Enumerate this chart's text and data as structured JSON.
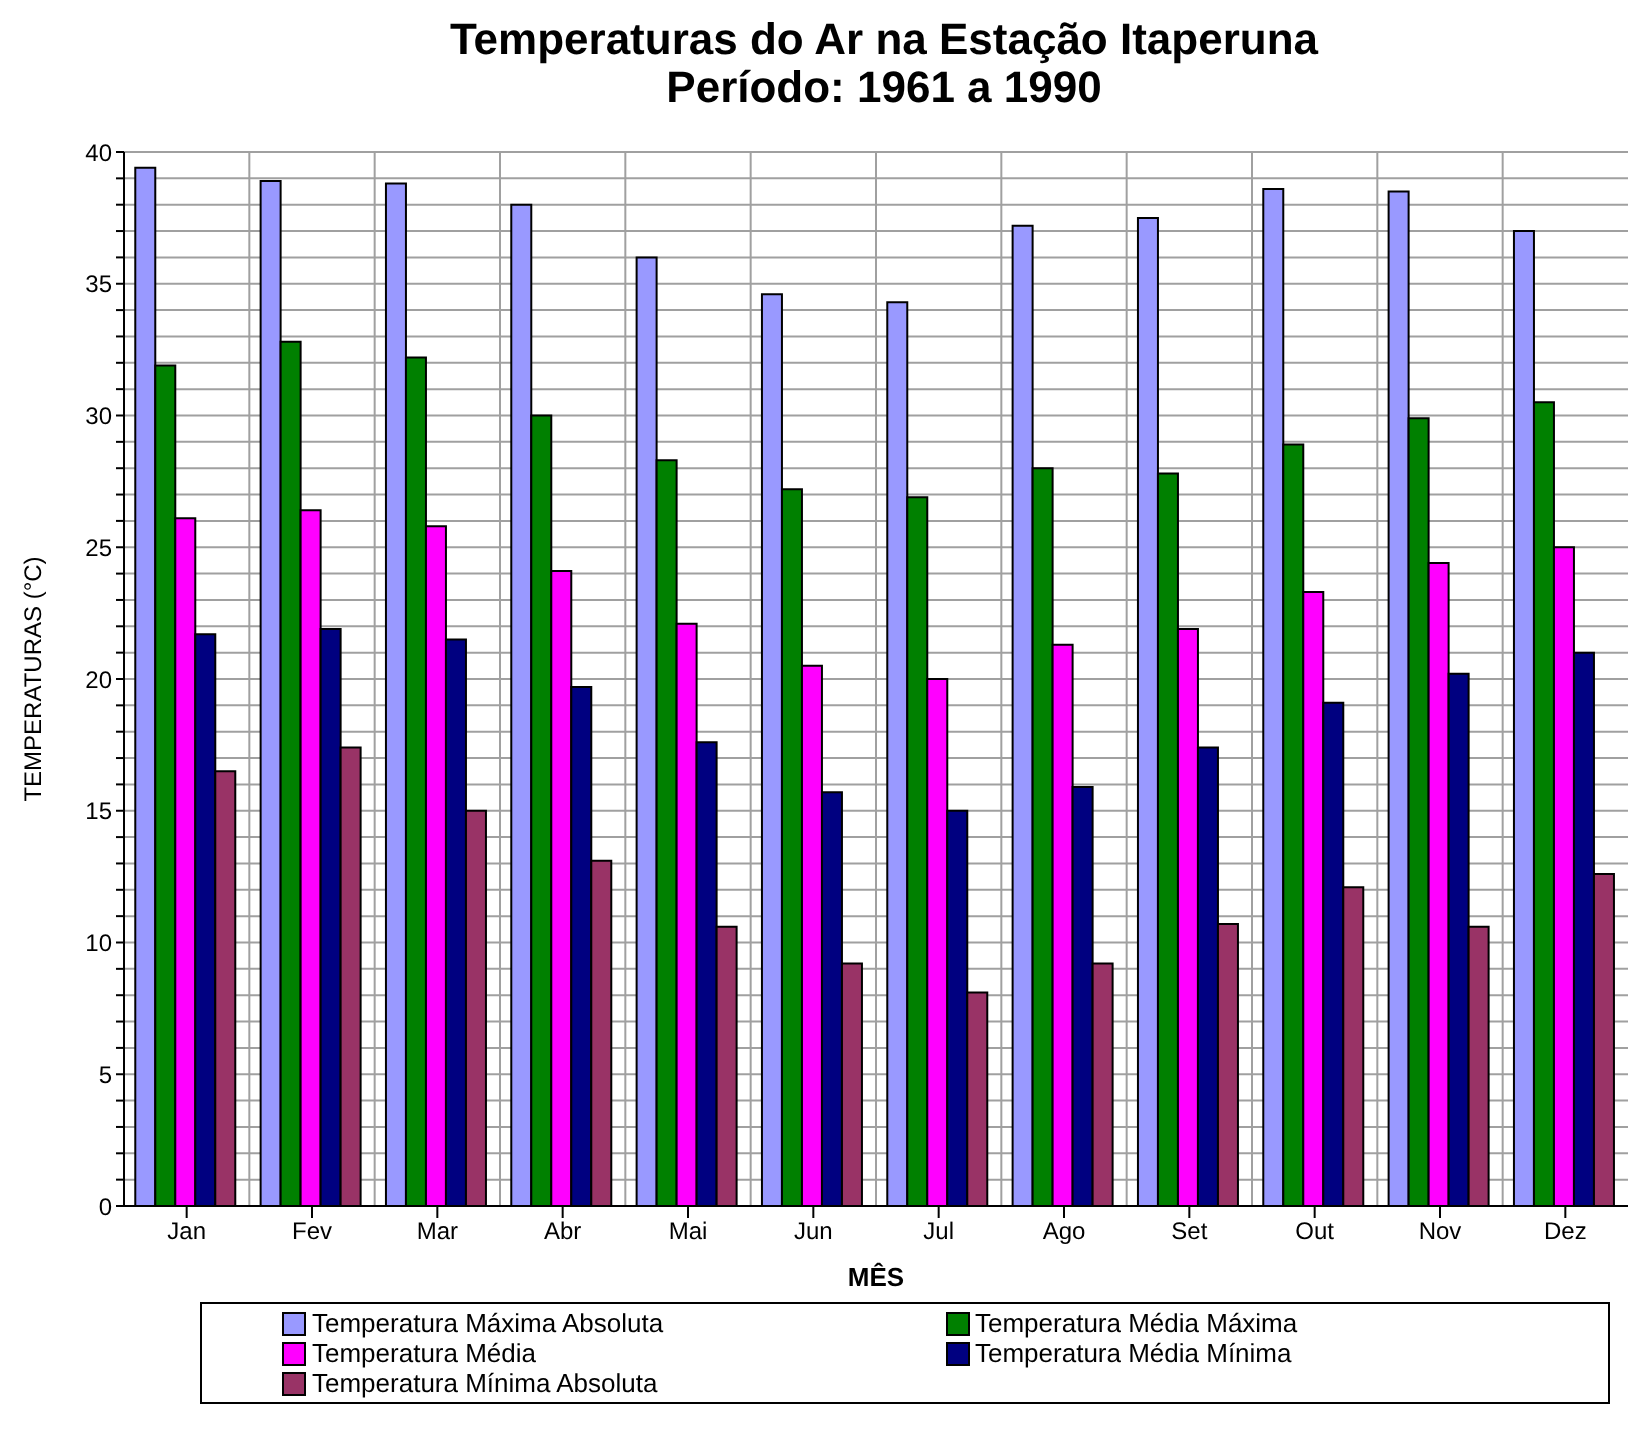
{
  "chart_data": {
    "type": "bar",
    "title": "Temperaturas do Ar na Estação Itaperuna",
    "subtitle": "Período: 1961 a 1990",
    "xlabel": "MÊS",
    "ylabel": "TEMPERATURAS (°C)",
    "categories": [
      "Jan",
      "Fev",
      "Mar",
      "Abr",
      "Mai",
      "Jun",
      "Jul",
      "Ago",
      "Set",
      "Out",
      "Nov",
      "Dez"
    ],
    "series": [
      {
        "name": "Temperatura Máxima Absoluta",
        "color": "#9999ff",
        "values": [
          39.4,
          38.9,
          38.8,
          38.0,
          36.0,
          34.6,
          34.3,
          37.2,
          37.5,
          38.6,
          38.5,
          37.0
        ]
      },
      {
        "name": "Temperatura Média Máxima",
        "color": "#008000",
        "values": [
          31.9,
          32.8,
          32.2,
          30.0,
          28.3,
          27.2,
          26.9,
          28.0,
          27.8,
          28.9,
          29.9,
          30.5
        ]
      },
      {
        "name": "Temperatura Média",
        "color": "#ff00ff",
        "values": [
          26.1,
          26.4,
          25.8,
          24.1,
          22.1,
          20.5,
          20.0,
          21.3,
          21.9,
          23.3,
          24.4,
          25.0
        ]
      },
      {
        "name": "Temperatura Média Mínima",
        "color": "#000080",
        "values": [
          21.7,
          21.9,
          21.5,
          19.7,
          17.6,
          15.7,
          15.0,
          15.9,
          17.4,
          19.1,
          20.2,
          21.0
        ]
      },
      {
        "name": "Temperatura Mínima Absoluta",
        "color": "#993366",
        "values": [
          16.5,
          17.4,
          15.0,
          13.1,
          10.6,
          9.2,
          8.1,
          9.2,
          10.7,
          12.1,
          10.6,
          12.6
        ]
      }
    ],
    "ylim": [
      0,
      40
    ],
    "yticks": [
      0,
      {
        "value": 1,
        "label": null
      },
      {
        "value": 2,
        "label": null
      },
      {
        "value": 3,
        "label": null
      },
      {
        "value": 4,
        "label": null
      },
      5,
      {
        "value": 6,
        "label": null
      },
      {
        "value": 7,
        "label": null
      },
      {
        "value": 8,
        "label": null
      },
      {
        "value": 9,
        "label": null
      },
      10,
      {
        "value": 11,
        "label": null
      },
      {
        "value": 12,
        "label": null
      },
      {
        "value": 13,
        "label": null
      },
      {
        "value": 14,
        "label": null
      },
      15,
      {
        "value": 16,
        "label": null
      },
      {
        "value": 17,
        "label": null
      },
      {
        "value": 18,
        "label": null
      },
      {
        "value": 19,
        "label": null
      },
      20,
      {
        "value": 21,
        "label": null
      },
      {
        "value": 22,
        "label": null
      },
      {
        "value": 23,
        "label": null
      },
      {
        "value": 24,
        "label": null
      },
      25,
      {
        "value": 26,
        "label": null
      },
      {
        "value": 27,
        "label": null
      },
      {
        "value": 28,
        "label": null
      },
      {
        "value": 29,
        "label": null
      },
      30,
      {
        "value": 31,
        "label": null
      },
      {
        "value": 32,
        "label": null
      },
      {
        "value": 33,
        "label": null
      },
      {
        "value": 34,
        "label": null
      },
      35,
      {
        "value": 36,
        "label": null
      },
      {
        "value": 37,
        "label": null
      },
      {
        "value": 38,
        "label": null
      },
      {
        "value": 39,
        "label": null
      },
      40
    ],
    "grid": true,
    "legend": "bottom"
  }
}
